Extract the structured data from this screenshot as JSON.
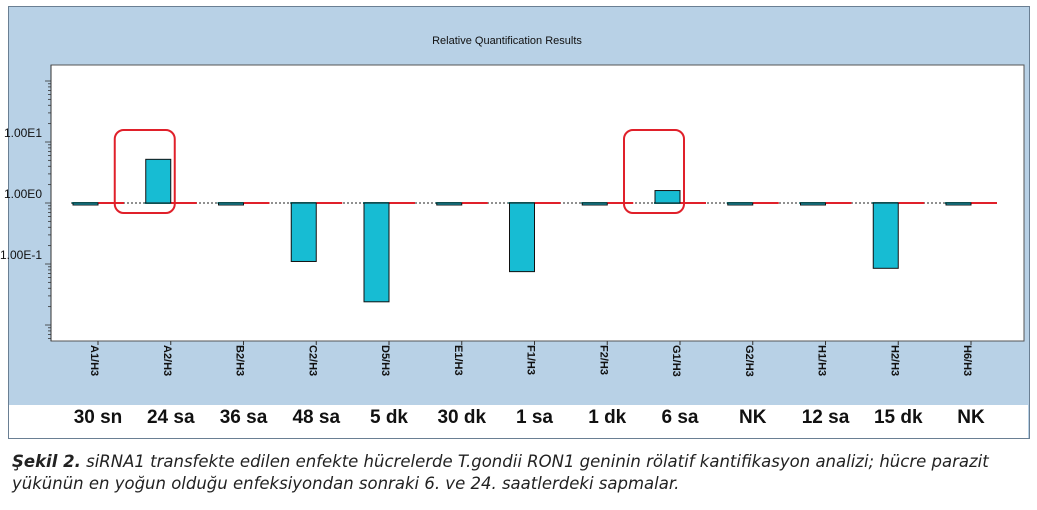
{
  "chart_data": {
    "type": "bar",
    "title": "Relative Quantification Results",
    "y_scale": "log",
    "ylim": [
      0.005,
      200
    ],
    "baseline": 1,
    "y_ticks": [
      {
        "value": 10,
        "label": "1.00E1"
      },
      {
        "value": 1,
        "label": "1.00E0"
      },
      {
        "value": 0.1,
        "label": "1.00E-1"
      }
    ],
    "categories": [
      "A1/H3",
      "A2/H3",
      "B2/H3",
      "C2/H3",
      "D5/H3",
      "E1/H3",
      "F1/H3",
      "F2/H3",
      "G1/H3",
      "G2/H3",
      "H1/H3",
      "H2/H3",
      "H6/H3"
    ],
    "time_labels": [
      "30 sn",
      "24 sa",
      "36 sa",
      "48 sa",
      "5 dk",
      "30 dk",
      "1 sa",
      "1 dk",
      "6 sa",
      "NK",
      "12 sa",
      "15 dk",
      "NK"
    ],
    "values": [
      1.0,
      5.2,
      0.93,
      0.11,
      0.024,
      1.0,
      0.075,
      1.0,
      1.6,
      1.0,
      1.0,
      0.085,
      1.0
    ],
    "highlighted": [
      "A2/H3",
      "G1/H3"
    ],
    "colors": {
      "bar": "#17bcd3",
      "bar_outline": "#111111",
      "reference_line": "#e0202a",
      "highlight_box": "#e0202a",
      "plot_bg": "#ffffff",
      "frame_bg": "#b8d1e6"
    }
  },
  "caption": {
    "label": "Şekil 2.",
    "text": " siRNA1 transfekte edilen enfekte hücrelerde T.gondii RON1 geninin rölatif kantifikasyon analizi; hücre parazit yükünün en yoğun olduğu enfeksiyondan sonraki 6. ve 24. saatlerdeki sapmalar."
  }
}
